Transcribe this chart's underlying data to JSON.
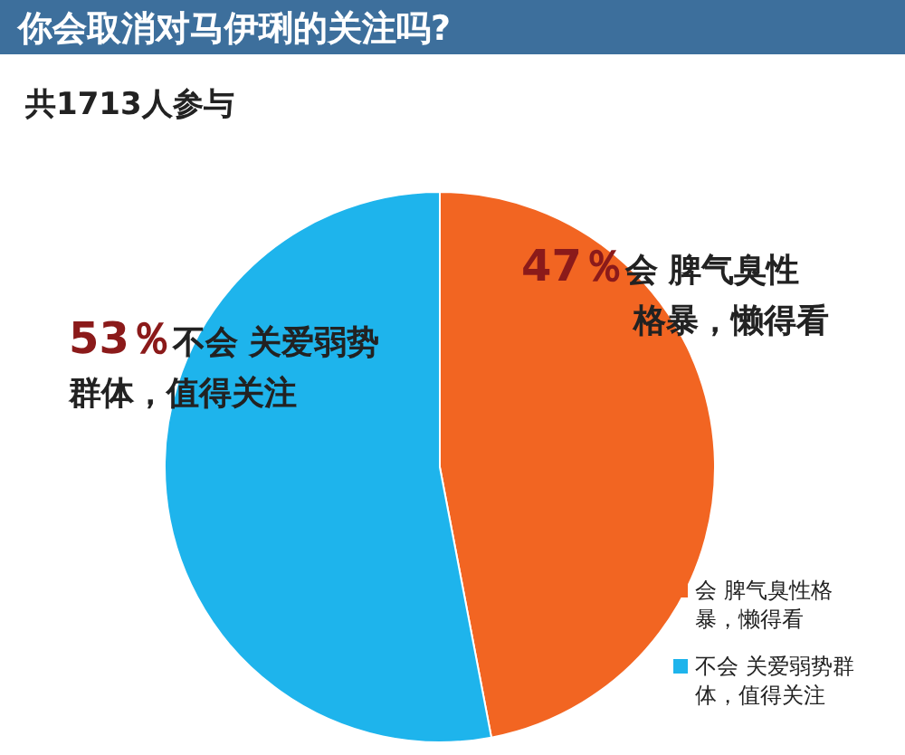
{
  "chart_data": {
    "type": "pie",
    "title": "你会取消对马伊琍的关注吗?",
    "subtitle": "共1713人参与",
    "categories": [
      "会 脾气臭性格暴，懒得看",
      "不会 关爱弱势群体，值得关注"
    ],
    "values": [
      47,
      53
    ],
    "colors": [
      "#f26522",
      "#1eb4ec"
    ],
    "value_labels": [
      "47％",
      "53％"
    ],
    "legend": "bottom right"
  }
}
